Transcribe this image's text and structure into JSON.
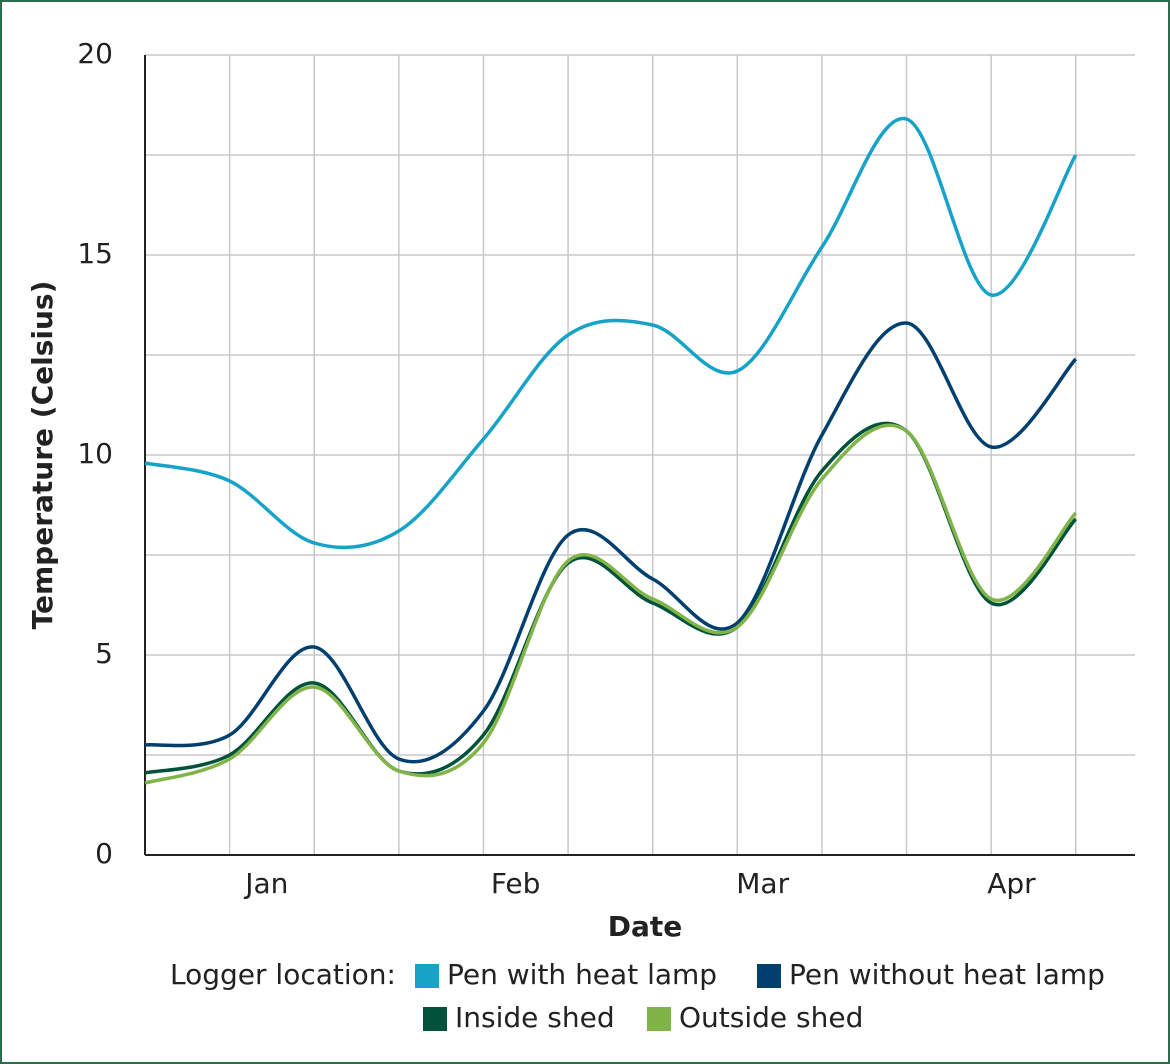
{
  "chart_data": {
    "type": "line",
    "x_label": "Date",
    "y_label": "Temperature (Celsius)",
    "legend_title": "Logger location:",
    "x": [
      0,
      1,
      2,
      3,
      4,
      5,
      6,
      7,
      8,
      9,
      10,
      11
    ],
    "series": [
      {
        "name": "Pen with heat lamp",
        "color": "#17a2c8",
        "values": [
          9.8,
          9.35,
          7.8,
          8.1,
          10.4,
          13.0,
          13.25,
          12.1,
          15.2,
          18.4,
          14.0,
          17.5
        ]
      },
      {
        "name": "Pen without heat lamp",
        "color": "#003f6e",
        "values": [
          2.75,
          3.0,
          5.2,
          2.4,
          3.6,
          8.0,
          6.9,
          5.8,
          10.5,
          13.3,
          10.2,
          12.4
        ]
      },
      {
        "name": "Inside shed",
        "color": "#00523a",
        "values": [
          2.05,
          2.5,
          4.3,
          2.1,
          3.0,
          7.3,
          6.3,
          5.7,
          9.6,
          10.6,
          6.3,
          8.4
        ]
      },
      {
        "name": "Outside shed",
        "color": "#80b348",
        "values": [
          1.8,
          2.4,
          4.2,
          2.1,
          2.8,
          7.35,
          6.4,
          5.7,
          9.4,
          10.6,
          6.4,
          8.55
        ]
      }
    ],
    "xlim": [
      0,
      11.7
    ],
    "xticks": [
      {
        "value": 1.44,
        "label": "Jan"
      },
      {
        "value": 4.38,
        "label": "Feb"
      },
      {
        "value": 7.3,
        "label": "Mar"
      },
      {
        "value": 10.24,
        "label": "Apr"
      }
    ],
    "ylim": [
      0,
      20
    ],
    "yticks": [
      0,
      5,
      10,
      15,
      20
    ],
    "yminor": [
      2.5,
      7.5,
      12.5,
      17.5
    ],
    "grid": true,
    "legend": "bottom"
  }
}
